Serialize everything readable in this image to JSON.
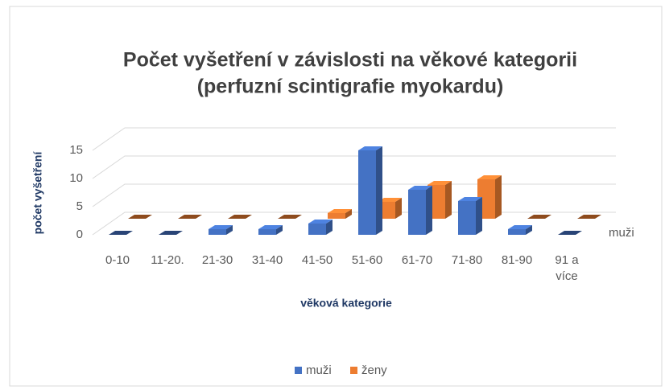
{
  "chart_data": {
    "type": "bar3d",
    "title": "Počet vyšetření v závislosti na věkové kategorii",
    "subtitle": "(perfuzní scintigrafie myokardu)",
    "x_label": "věková kategorie",
    "y_label": "počet vyšetření",
    "categories": [
      "0-10",
      "11-20.",
      "21-30",
      "31-40",
      "41-50",
      "51-60",
      "61-70",
      "71-80",
      "81-90",
      "91 a více"
    ],
    "series": [
      {
        "name": "muži",
        "color": "#4472c4",
        "values": [
          0,
          0,
          1,
          1,
          2,
          15,
          8,
          6,
          1,
          0
        ]
      },
      {
        "name": "ženy",
        "color": "#ed7d31",
        "values": [
          0,
          0,
          0,
          0,
          1,
          3,
          6,
          7,
          0,
          0
        ]
      }
    ],
    "ylim": [
      0,
      15
    ],
    "yticks": [
      0,
      5,
      10,
      15
    ],
    "grid": true,
    "legend": "bottom"
  }
}
